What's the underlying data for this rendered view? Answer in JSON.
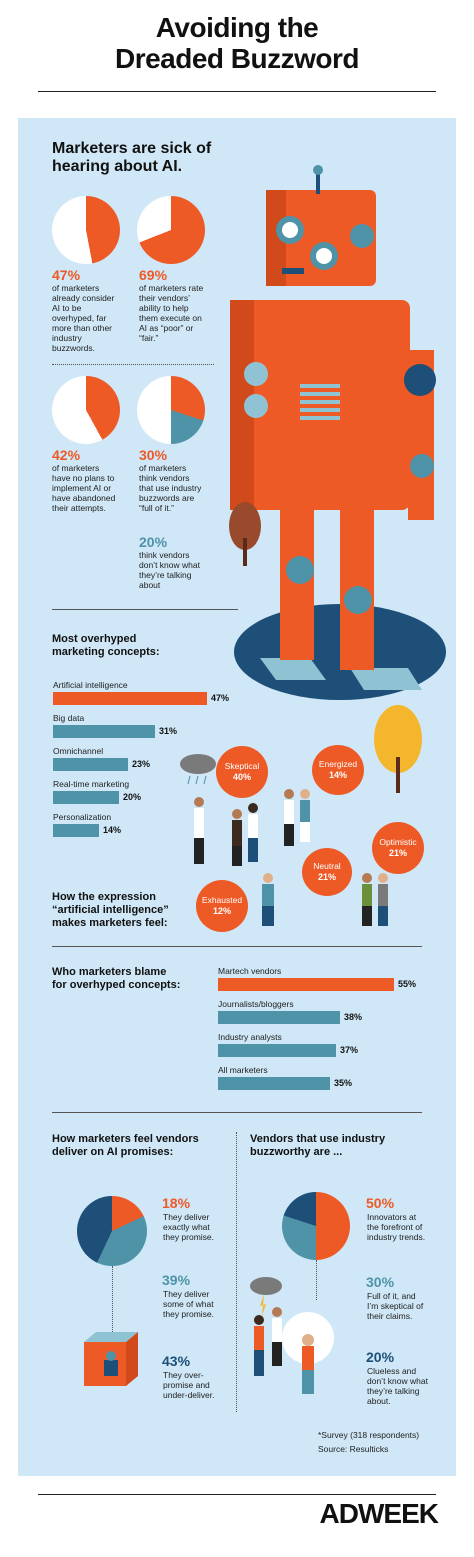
{
  "title_line1": "Avoiding the",
  "title_line2": "Dreaded Buzzword",
  "colors": {
    "orange": "#ee5a26",
    "teal": "#4f93a8",
    "navy": "#1d4f79",
    "panel": "#cfe7f6"
  },
  "section1": {
    "heading": "Marketers are sick of hearing about AI.",
    "stats": [
      {
        "pct": "47%",
        "text": "of marketers already consider AI to be overhyped, far more than other industry buzzwords."
      },
      {
        "pct": "69%",
        "text": "of marketers rate their vendors’ ability to help them execute on AI as “poor” or “fair.”"
      },
      {
        "pct": "42%",
        "text": "of marketers have no plans to implement AI or have abandoned their attempts."
      },
      {
        "pct": "30%",
        "text": "of marketers think vendors that use industry buzzwords are “full of it.”"
      }
    ],
    "extra": {
      "pct": "20%",
      "text": "think vendors don’t know what they’re talking about"
    }
  },
  "overhyped": {
    "heading": "Most overhyped marketing concepts:",
    "items": [
      {
        "label": "Artificial intelligence",
        "value": 47,
        "display": "47%"
      },
      {
        "label": "Big data",
        "value": 31,
        "display": "31%"
      },
      {
        "label": "Omnichannel",
        "value": 23,
        "display": "23%"
      },
      {
        "label": "Real-time marketing",
        "value": 20,
        "display": "20%"
      },
      {
        "label": "Personalization",
        "value": 14,
        "display": "14%"
      }
    ]
  },
  "feelings": {
    "heading": "How the expression “artificial intelligence” makes marketers feel:",
    "items": [
      {
        "label": "Skeptical",
        "pct": "40%"
      },
      {
        "label": "Energized",
        "pct": "14%"
      },
      {
        "label": "Optimistic",
        "pct": "21%"
      },
      {
        "label": "Neutral",
        "pct": "21%"
      },
      {
        "label": "Exhausted",
        "pct": "12%"
      }
    ]
  },
  "blame": {
    "heading": "Who marketers blame for overhyped concepts:",
    "items": [
      {
        "label": "Martech vendors",
        "value": 55,
        "display": "55%"
      },
      {
        "label": "Journalists/bloggers",
        "value": 38,
        "display": "38%"
      },
      {
        "label": "Industry analysts",
        "value": 37,
        "display": "37%"
      },
      {
        "label": "All marketers",
        "value": 35,
        "display": "35%"
      }
    ]
  },
  "deliver": {
    "heading": "How marketers feel vendors deliver on AI promises:",
    "items": [
      {
        "pct": "18%",
        "text": "They deliver exactly what they promise."
      },
      {
        "pct": "39%",
        "text": "They deliver some of what they promise."
      },
      {
        "pct": "43%",
        "text": "They over-promise and under-deliver."
      }
    ]
  },
  "buzzworthy": {
    "heading": "Vendors that use industry buzzworthy are ...",
    "items": [
      {
        "pct": "50%",
        "text": "Innovators at the forefront of industry trends."
      },
      {
        "pct": "30%",
        "text": "Full of it, and I’m skeptical of their claims."
      },
      {
        "pct": "20%",
        "text": "Clueless and don’t know what they’re talking about."
      }
    ]
  },
  "footnote": "*Survey (318 respondents)",
  "source": "Source: Resulticks",
  "brand": "ADWEEK"
}
